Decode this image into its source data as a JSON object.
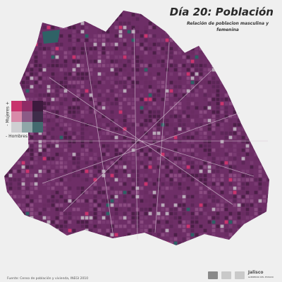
{
  "header": {
    "title": "Día 20: Población",
    "subtitle": "Relación de poblacion masculina y femenina"
  },
  "legend": {
    "y_axis": "- Mujeres +",
    "x_axis_left": "-",
    "x_axis_label": "Hombres",
    "x_axis_right": "+",
    "bivariate_colors": [
      [
        "#c8336d",
        "#8e2b66",
        "#3e1a3e"
      ],
      [
        "#d88aa9",
        "#8c5a86",
        "#3f2c4a"
      ],
      [
        "#cfcfd2",
        "#8fa6a8",
        "#436a6f"
      ]
    ]
  },
  "map": {
    "background_color": "#efefef",
    "dominant_color": "#6e2e67",
    "accent_color": "#c8336d",
    "teal_color": "#2f6266"
  },
  "footer": {
    "source": "Fuente: Censo de población y vivienda, INEGI 2010",
    "logo_label": "Jalisco",
    "logo_sublabel": "GOBIERNO DEL ESTADO"
  }
}
